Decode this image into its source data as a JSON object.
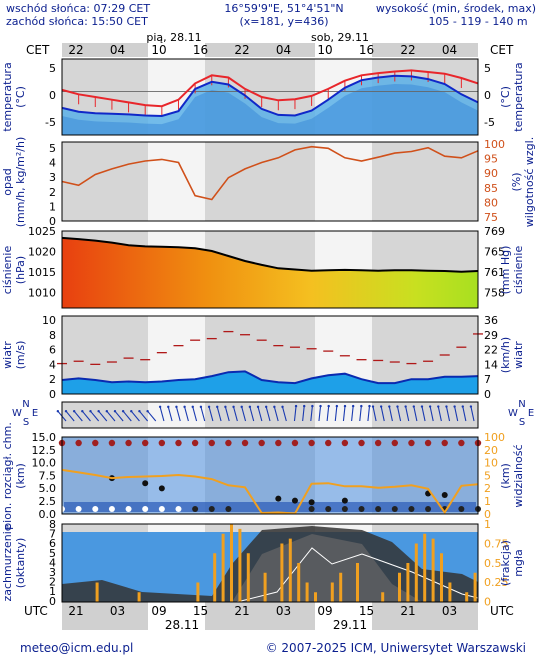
{
  "header": {
    "sunrise": "wschód słońca: 07:29 CET",
    "sunset": "zachód słońca: 15:50 CET",
    "coords": "16°59'9\"E, 51°4'51\"N",
    "grid": "(x=181,  y=436)",
    "altitude_label": "wysokość (min, środek, max)",
    "altitude_values": "105 - 119 - 140 m",
    "cet_left": "CET",
    "cet_right": "CET",
    "day1": "pią, 28.11",
    "day2": "sob, 29.11",
    "top_hours": [
      "22",
      "04",
      "10",
      "16",
      "22",
      "04",
      "10",
      "16",
      "22",
      "04"
    ]
  },
  "footer": {
    "utc_left": "UTC",
    "utc_right": "UTC",
    "bottom_hours": [
      "21",
      "03",
      "09",
      "15",
      "21",
      "03",
      "09",
      "15",
      "21",
      "03"
    ],
    "date1": "28.11",
    "date2": "29.11",
    "email": "meteo@icm.edu.pl",
    "copyright": "© 2007-2025 ICM, Uniwersytet Warszawski"
  },
  "colors": {
    "red": "#e8262b",
    "blue": "#1028c8",
    "sky": "#5ab0e8",
    "dark": "#1a1a1a",
    "orange": "#f0a020",
    "label": "#0b1f8f"
  },
  "chart_data": [
    {
      "type": "line",
      "panel": "temperature",
      "left_label": [
        "temperatura",
        "(°C)"
      ],
      "right_label": [
        "(°C)",
        "temperatura"
      ],
      "ylim": [
        -8,
        6
      ],
      "y_ticks": [
        "5",
        "0",
        "-5"
      ],
      "series": [
        {
          "values": [
            0.3,
            -0.5,
            -1.0,
            -1.5,
            -2.0,
            -2.5,
            -2.7,
            -1.5,
            1.5,
            3.0,
            2.6,
            0.5,
            -1.0,
            -1.6,
            -1.4,
            -0.8,
            0.5,
            2.0,
            3.0,
            3.4,
            3.7,
            3.9,
            3.6,
            3.3,
            2.5,
            1.5
          ]
        },
        {
          "values": [
            -3.0,
            -3.7,
            -4.0,
            -4.1,
            -4.2,
            -4.4,
            -4.5,
            -3.6,
            0.5,
            1.8,
            1.3,
            -0.7,
            -3.2,
            -4.3,
            -4.4,
            -3.5,
            -1.5,
            0.7,
            2.1,
            2.6,
            2.9,
            2.8,
            2.3,
            1.4,
            -0.5,
            -2.0
          ]
        }
      ]
    },
    {
      "type": "line",
      "panel": "humidity",
      "left_label": [
        "opad",
        "(mm/h, kg/m²/h)"
      ],
      "right_label": [
        "(%)",
        "wilgotność wzgl."
      ],
      "ylim": [
        75,
        100
      ],
      "y_ticks_left": [
        "5",
        "4",
        "3",
        "2",
        "1",
        "0"
      ],
      "y_ticks_right": [
        "100",
        "95",
        "90",
        "85",
        "80",
        "75"
      ],
      "series": [
        {
          "values": [
            87.5,
            86.3,
            89.7,
            91.5,
            93.0,
            94.0,
            94.5,
            93.5,
            83.0,
            81.8,
            88.7,
            91.5,
            93.5,
            95.0,
            97.5,
            98.5,
            98.0,
            95.0,
            94.0,
            95.2,
            96.5,
            97.0,
            98.2,
            95.5,
            95.0,
            97.2
          ]
        }
      ]
    },
    {
      "type": "area",
      "panel": "pressure",
      "left_label": [
        "ciśnienie",
        "(hPa)"
      ],
      "right_label": [
        "(mm Hg)",
        "ciśnienie"
      ],
      "ylim": [
        1005,
        1025
      ],
      "y_ticks_left": [
        "1025",
        "1020",
        "1015",
        "1010"
      ],
      "y_ticks_right": [
        "769",
        "765",
        "761",
        "758"
      ],
      "series": [
        {
          "values": [
            1023.2,
            1022.9,
            1022.5,
            1022.0,
            1021.3,
            1021.0,
            1020.9,
            1020.8,
            1020.5,
            1019.8,
            1018.5,
            1017.2,
            1016.2,
            1015.3,
            1015.0,
            1014.7,
            1014.8,
            1014.9,
            1014.8,
            1014.7,
            1014.8,
            1014.8,
            1014.7,
            1014.6,
            1014.4,
            1014.6
          ]
        }
      ]
    },
    {
      "type": "area",
      "panel": "wind",
      "left_label": [
        "wiatr",
        "(m/s)"
      ],
      "right_label": [
        "(km/h)",
        "wiatr"
      ],
      "ylim": [
        0,
        10
      ],
      "y_ticks_left": [
        "10",
        "8",
        "6",
        "4",
        "2",
        "0"
      ],
      "y_ticks_right": [
        "36",
        "29",
        "22",
        "14",
        "7",
        "0"
      ],
      "series": [
        {
          "values": [
            1.8,
            2.0,
            1.8,
            1.5,
            1.6,
            1.5,
            1.6,
            1.8,
            1.9,
            2.3,
            2.8,
            2.9,
            1.8,
            1.5,
            1.4,
            2.0,
            2.4,
            2.6,
            1.9,
            1.4,
            1.4,
            1.9,
            1.9,
            2.2,
            2.2,
            2.3
          ]
        },
        {
          "values": [
            3.9,
            4.2,
            3.8,
            4.1,
            4.6,
            4.4,
            5.3,
            6.2,
            6.9,
            7.1,
            8.0,
            7.6,
            6.9,
            6.2,
            6.0,
            5.8,
            5.5,
            4.9,
            4.4,
            4.3,
            4.1,
            3.9,
            4.2,
            5.0,
            6.0,
            7.7
          ]
        }
      ]
    },
    {
      "type": "line",
      "panel": "wind-direction",
      "left_label": [
        "N",
        "W",
        "E",
        "S"
      ],
      "right_label": [
        "N",
        "W",
        "E",
        "S"
      ]
    },
    {
      "type": "scatter",
      "panel": "cloud-base",
      "left_label": [
        "pion. rozciągł. chm.",
        "(km)"
      ],
      "right_label": [
        "(km)",
        "widzialność"
      ],
      "ylim": [
        0,
        15
      ],
      "y_ticks_left": [
        "15.0",
        "12.5",
        "10.0",
        "7.5",
        "5.0",
        "2.5",
        "0.0"
      ],
      "y_ticks_right": [
        "100",
        "20",
        "10",
        "5",
        "2",
        "1",
        "0"
      ],
      "series": [
        {
          "values": [
            8.6,
            8.1,
            7.6,
            7.0,
            7.2,
            7.3,
            7.4,
            7.6,
            7.3,
            6.8,
            5.6,
            5.2,
            0.2,
            0.3,
            0.1,
            5.9,
            6.0,
            5.4,
            5.4,
            5.1,
            5.3,
            5.6,
            4.9,
            0.3,
            5.5,
            5.8
          ]
        }
      ]
    },
    {
      "type": "bar",
      "panel": "cloud-cover",
      "left_label": [
        "zachmurzenie",
        "(oktanty)"
      ],
      "right_label": [
        "(frakcja)",
        "mgła"
      ],
      "ylim": [
        0,
        8
      ],
      "y_ticks_left": [
        "8",
        "7",
        "6",
        "5",
        "4",
        "3",
        "2",
        "1",
        "0"
      ],
      "y_ticks_right": [
        "1",
        "0.75",
        "0.5",
        "0.25",
        "0"
      ]
    }
  ]
}
